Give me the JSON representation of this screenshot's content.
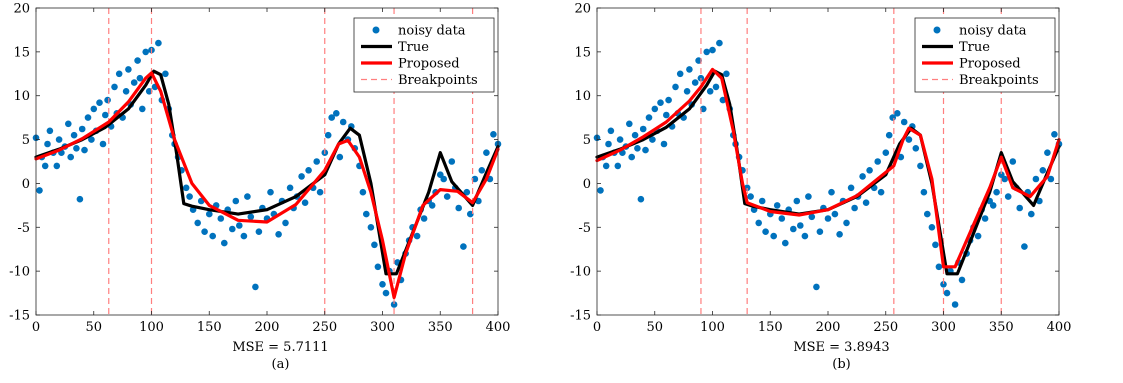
{
  "chart_data": [
    {
      "type": "scatter",
      "xlim": [
        0,
        400
      ],
      "ylim": [
        -15,
        20
      ],
      "x_ticks": [
        0,
        50,
        100,
        150,
        200,
        250,
        300,
        350,
        400
      ],
      "y_ticks": [
        -15,
        -10,
        -5,
        0,
        5,
        10,
        15,
        20
      ],
      "grid": false,
      "legend_position": "top-right",
      "legend": [
        "noisy data",
        "True",
        "Proposed",
        "Breakpoints"
      ],
      "metric_label": "MSE = 5.7111",
      "panel_label": "(a)",
      "breakpoints": [
        63,
        100,
        250,
        310,
        378
      ],
      "true_curve": {
        "x": [
          0,
          20,
          40,
          60,
          80,
          95,
          102,
          108,
          115,
          122,
          128,
          135,
          150,
          175,
          200,
          225,
          250,
          262,
          272,
          280,
          290,
          297,
          303,
          312,
          325,
          340,
          350,
          360,
          378,
          390,
          400
        ],
        "y": [
          3.0,
          3.9,
          5.0,
          6.4,
          8.5,
          11.2,
          12.8,
          12.4,
          9.0,
          3.2,
          -2.3,
          -2.6,
          -3.0,
          -3.5,
          -3.0,
          -1.5,
          1.0,
          4.5,
          6.3,
          5.5,
          0.0,
          -5.5,
          -10.3,
          -10.3,
          -6.0,
          -1.0,
          3.5,
          0.2,
          -2.5,
          1.2,
          4.2
        ]
      },
      "proposed_curve": {
        "x": [
          0,
          20,
          40,
          63,
          80,
          95,
          100,
          108,
          120,
          135,
          150,
          175,
          200,
          225,
          250,
          262,
          270,
          280,
          290,
          300,
          310,
          320,
          335,
          350,
          365,
          378,
          390,
          400
        ],
        "y": [
          2.8,
          3.8,
          5.1,
          7.0,
          9.3,
          12.0,
          12.6,
          10.5,
          5.0,
          0.0,
          -2.5,
          -4.2,
          -4.4,
          -2.4,
          1.5,
          4.5,
          4.9,
          3.0,
          -1.0,
          -6.5,
          -13.0,
          -8.0,
          -2.5,
          -0.7,
          -0.9,
          -2.2,
          0.5,
          3.9
        ]
      },
      "noisy_data": {
        "x": [
          0,
          3,
          5,
          8,
          10,
          12,
          15,
          18,
          20,
          22,
          25,
          28,
          30,
          33,
          35,
          38,
          40,
          42,
          45,
          48,
          50,
          52,
          55,
          58,
          60,
          62,
          65,
          68,
          70,
          72,
          75,
          78,
          80,
          82,
          85,
          88,
          90,
          92,
          95,
          98,
          100,
          103,
          106,
          109,
          112,
          115,
          118,
          120,
          123,
          126,
          130,
          133,
          136,
          140,
          143,
          146,
          150,
          153,
          156,
          160,
          163,
          166,
          170,
          173,
          176,
          180,
          183,
          186,
          190,
          193,
          196,
          200,
          203,
          206,
          210,
          213,
          216,
          220,
          223,
          226,
          230,
          233,
          236,
          240,
          243,
          246,
          250,
          253,
          256,
          260,
          263,
          266,
          270,
          273,
          276,
          280,
          283,
          286,
          290,
          293,
          296,
          300,
          303,
          306,
          310,
          313,
          316,
          320,
          323,
          326,
          330,
          333,
          336,
          340,
          343,
          346,
          350,
          353,
          356,
          360,
          363,
          366,
          370,
          373,
          376,
          380,
          383,
          386,
          390,
          393,
          396,
          400
        ],
        "y": [
          5.2,
          -0.8,
          3.0,
          2.0,
          4.5,
          6.0,
          3.5,
          2.0,
          5.0,
          3.5,
          4.2,
          6.8,
          3.0,
          5.5,
          4.0,
          -1.8,
          6.2,
          3.8,
          7.5,
          5.0,
          8.5,
          6.0,
          9.2,
          4.5,
          7.8,
          9.5,
          6.5,
          11.0,
          8.0,
          12.5,
          7.5,
          10.5,
          13.0,
          9.0,
          11.5,
          14.0,
          12.0,
          8.5,
          15.0,
          10.5,
          15.2,
          11.0,
          16.0,
          9.5,
          12.5,
          8.5,
          5.5,
          4.5,
          3.0,
          1.5,
          -0.5,
          -1.5,
          -3.0,
          -4.5,
          -2.0,
          -5.5,
          -3.5,
          -6.0,
          -2.5,
          -4.0,
          -6.8,
          -3.0,
          -5.2,
          -2.0,
          -4.8,
          -6.0,
          -1.5,
          -3.8,
          -11.8,
          -5.5,
          -2.8,
          -4.0,
          -1.0,
          -3.5,
          -5.8,
          -2.0,
          -4.5,
          -0.5,
          -2.8,
          -1.5,
          0.8,
          -2.2,
          1.5,
          -0.5,
          2.5,
          -1.0,
          3.5,
          5.5,
          7.5,
          8.0,
          3.0,
          7.0,
          5.0,
          6.5,
          4.0,
          2.0,
          -1.0,
          -3.5,
          -5.0,
          -7.0,
          -9.5,
          -11.5,
          -12.5,
          -10.0,
          -13.8,
          -9.0,
          -11.0,
          -8.0,
          -6.5,
          -5.0,
          -6.0,
          -3.0,
          -4.0,
          -2.0,
          -2.5,
          -1.0,
          1.0,
          0.5,
          -1.5,
          2.5,
          -0.5,
          -2.8,
          -7.2,
          -1.0,
          -3.5,
          0.5,
          -2.0,
          1.5,
          3.5,
          0.5,
          5.6,
          4.5
        ]
      }
    },
    {
      "type": "scatter",
      "xlim": [
        0,
        400
      ],
      "ylim": [
        -15,
        20
      ],
      "x_ticks": [
        0,
        50,
        100,
        150,
        200,
        250,
        300,
        350,
        400
      ],
      "y_ticks": [
        -15,
        -10,
        -5,
        0,
        5,
        10,
        15,
        20
      ],
      "grid": false,
      "legend_position": "top-right",
      "legend": [
        "noisy data",
        "True",
        "Proposed",
        "Breakpoints"
      ],
      "metric_label": "MSE = 3.8943",
      "panel_label": "(b)",
      "breakpoints": [
        90,
        130,
        257,
        300,
        350
      ],
      "true_curve": {
        "x": [
          0,
          20,
          40,
          60,
          80,
          95,
          102,
          108,
          115,
          122,
          128,
          135,
          150,
          175,
          200,
          225,
          250,
          262,
          272,
          280,
          290,
          297,
          303,
          312,
          325,
          340,
          350,
          360,
          378,
          390,
          400
        ],
        "y": [
          3.0,
          3.9,
          5.0,
          6.4,
          8.5,
          11.2,
          12.8,
          12.4,
          9.0,
          3.2,
          -2.3,
          -2.6,
          -3.0,
          -3.5,
          -3.0,
          -1.5,
          1.0,
          4.5,
          6.3,
          5.5,
          0.0,
          -5.5,
          -10.3,
          -10.3,
          -6.0,
          -1.0,
          3.5,
          0.2,
          -2.5,
          1.2,
          4.2
        ]
      },
      "proposed_curve": {
        "x": [
          0,
          20,
          40,
          60,
          80,
          90,
          100,
          108,
          118,
          126,
          130,
          150,
          175,
          200,
          225,
          257,
          265,
          270,
          280,
          290,
          300,
          310,
          325,
          340,
          350,
          360,
          375,
          390,
          400
        ],
        "y": [
          2.6,
          3.8,
          5.3,
          7.0,
          9.4,
          11.0,
          13.0,
          12.0,
          6.0,
          0.0,
          -2.2,
          -3.2,
          -3.6,
          -3.0,
          -1.4,
          2.0,
          5.0,
          6.3,
          5.5,
          0.5,
          -9.5,
          -9.5,
          -5.0,
          -0.5,
          3.0,
          -0.5,
          -1.5,
          0.8,
          5.0
        ]
      },
      "noisy_data": {
        "x": [
          0,
          3,
          5,
          8,
          10,
          12,
          15,
          18,
          20,
          22,
          25,
          28,
          30,
          33,
          35,
          38,
          40,
          42,
          45,
          48,
          50,
          52,
          55,
          58,
          60,
          62,
          65,
          68,
          70,
          72,
          75,
          78,
          80,
          82,
          85,
          88,
          90,
          92,
          95,
          98,
          100,
          103,
          106,
          109,
          112,
          115,
          118,
          120,
          123,
          126,
          130,
          133,
          136,
          140,
          143,
          146,
          150,
          153,
          156,
          160,
          163,
          166,
          170,
          173,
          176,
          180,
          183,
          186,
          190,
          193,
          196,
          200,
          203,
          206,
          210,
          213,
          216,
          220,
          223,
          226,
          230,
          233,
          236,
          240,
          243,
          246,
          250,
          253,
          256,
          260,
          263,
          266,
          270,
          273,
          276,
          280,
          283,
          286,
          290,
          293,
          296,
          300,
          303,
          306,
          310,
          313,
          316,
          320,
          323,
          326,
          330,
          333,
          336,
          340,
          343,
          346,
          350,
          353,
          356,
          360,
          363,
          366,
          370,
          373,
          376,
          380,
          383,
          386,
          390,
          393,
          396,
          400
        ],
        "y": [
          5.2,
          -0.8,
          3.0,
          2.0,
          4.5,
          6.0,
          3.5,
          2.0,
          5.0,
          3.5,
          4.2,
          6.8,
          3.0,
          5.5,
          4.0,
          -1.8,
          6.2,
          3.8,
          7.5,
          5.0,
          8.5,
          6.0,
          9.2,
          4.5,
          7.8,
          9.5,
          6.5,
          11.0,
          8.0,
          12.5,
          7.5,
          10.5,
          13.0,
          9.0,
          11.5,
          14.0,
          12.0,
          8.5,
          15.0,
          10.5,
          15.2,
          11.0,
          16.0,
          9.5,
          12.5,
          8.5,
          5.5,
          4.5,
          3.0,
          1.5,
          -0.5,
          -1.5,
          -3.0,
          -4.5,
          -2.0,
          -5.5,
          -3.5,
          -6.0,
          -2.5,
          -4.0,
          -6.8,
          -3.0,
          -5.2,
          -2.0,
          -4.8,
          -6.0,
          -1.5,
          -3.8,
          -11.8,
          -5.5,
          -2.8,
          -4.0,
          -1.0,
          -3.5,
          -5.8,
          -2.0,
          -4.5,
          -0.5,
          -2.8,
          -1.5,
          0.8,
          -2.2,
          1.5,
          -0.5,
          2.5,
          -1.0,
          3.5,
          5.5,
          7.5,
          8.0,
          3.0,
          7.0,
          5.0,
          6.5,
          4.0,
          2.0,
          -1.0,
          -3.5,
          -5.0,
          -7.0,
          -9.5,
          -11.5,
          -12.5,
          -10.0,
          -13.8,
          -9.0,
          -11.0,
          -8.0,
          -6.5,
          -5.0,
          -6.0,
          -3.0,
          -4.0,
          -2.0,
          -2.5,
          -1.0,
          1.0,
          0.5,
          -1.5,
          2.5,
          -0.5,
          -2.8,
          -7.2,
          -1.0,
          -3.5,
          0.5,
          -2.0,
          1.5,
          3.5,
          0.5,
          5.6,
          4.5
        ]
      }
    }
  ],
  "colors": {
    "noisy_data": "#0072bd",
    "true_curve": "#000000",
    "proposed_curve": "#ff0000",
    "breakpoint": "#ff7f7f",
    "axis": "#262626"
  }
}
